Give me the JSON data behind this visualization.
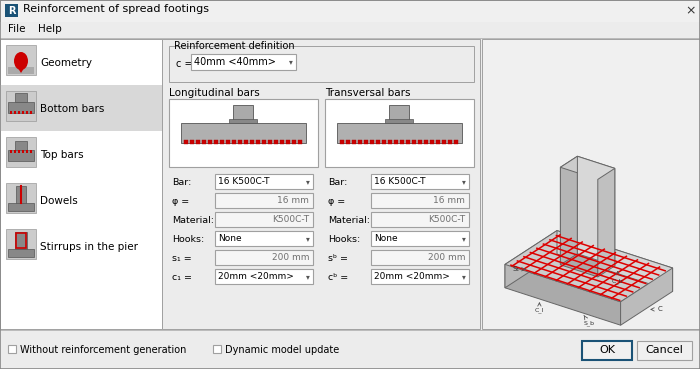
{
  "title": "Reinforcement of spread footings",
  "menu_items": [
    "File",
    "Help"
  ],
  "nav_items": [
    "Geometry",
    "Bottom bars",
    "Top bars",
    "Dowels",
    "Stirrups in the pier"
  ],
  "active_nav": "Bottom bars",
  "reinf_def_label": "Reinforcement definition",
  "c_label": "c =",
  "c_value": "40mm <40mm>",
  "long_bars_label": "Longitudinal bars",
  "trans_bars_label": "Transversal bars",
  "bar_value": "16 K500C-T",
  "phi_value": "16 mm",
  "material_value": "K500C-T",
  "hooks_value": "None",
  "s1_value": "200 mm",
  "c1_value": "20mm <20mm>",
  "sb_value": "200 mm",
  "cb_value": "20mm <20mm>",
  "check1": "Without reinforcement generation",
  "check2": "Dynamic model update",
  "ok_btn": "OK",
  "cancel_btn": "Cancel",
  "bg_color": "#ececec",
  "panel_bg": "#ffffff",
  "active_nav_bg": "#d8d8d8",
  "border_color": "#a0a0a0",
  "text_color": "#000000",
  "gray_text": "#707070",
  "red_color": "#cc0000",
  "blue_color": "#1a5276"
}
